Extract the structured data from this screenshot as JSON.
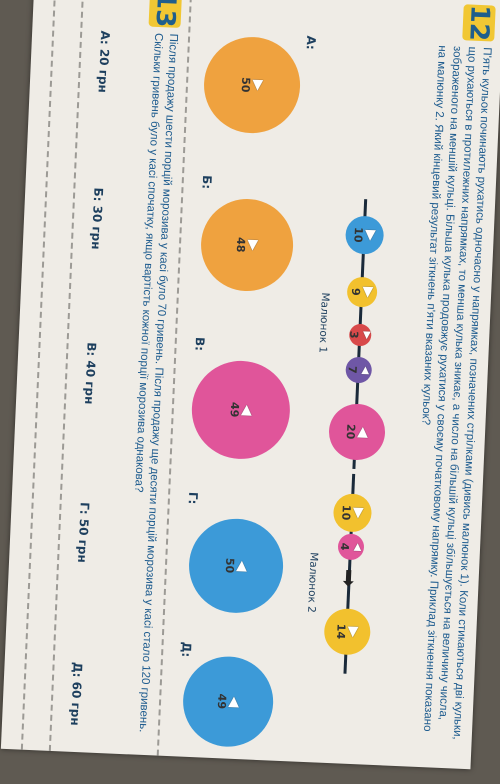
{
  "task12": {
    "number": "12",
    "text": "П'ять кульок починають рухатись одночасно у напрямках, позначених стрілками (дивись малюнок 1). Коли стикаються дві кульки, що рухаються в протилежних напрямках, то менша кулька зникає, а число на більшій кульці збільшується на величину числа, зображеного на меншій кульці. Більша кулька продовжує рухатися у своєму початковому напрямку. Приклад зіткнення показано на малюнку 2. Який кінцевий результат зіткнень п'яти вказаних кульок?",
    "figure1_caption": "Малюнок 1",
    "figure2_caption": "Малюнок 2",
    "figure1_balls": [
      "10",
      "9",
      "3",
      "7",
      "20"
    ],
    "figure2_balls": [
      "10",
      "4",
      "14"
    ],
    "answers": [
      {
        "label": "А:",
        "value": "50"
      },
      {
        "label": "Б:",
        "value": "48"
      },
      {
        "label": "В:",
        "value": "49"
      },
      {
        "label": "Г:",
        "value": "50"
      },
      {
        "label": "Д:",
        "value": "49"
      }
    ],
    "colors": {
      "yellow": "#f2c12e",
      "pink": "#e0559a",
      "blue": "#3c9ad8",
      "red": "#d8494a",
      "purple": "#6f57a6",
      "orange": "#efa23f"
    }
  },
  "task13": {
    "number": "13",
    "text": "Після продажу шести порцій морозива у касі було 70 гривень. Після продажу ще десяти порцій морозива у касі стало 120 гривень. Скільки гривень було у касі спочатку, якщо вартість кожної порції морозива однакова?",
    "options": [
      "А: 20 грн",
      "Б: 30 грн",
      "В: 40 грн",
      "Г: 50 грн",
      "Д: 60 грн"
    ]
  }
}
